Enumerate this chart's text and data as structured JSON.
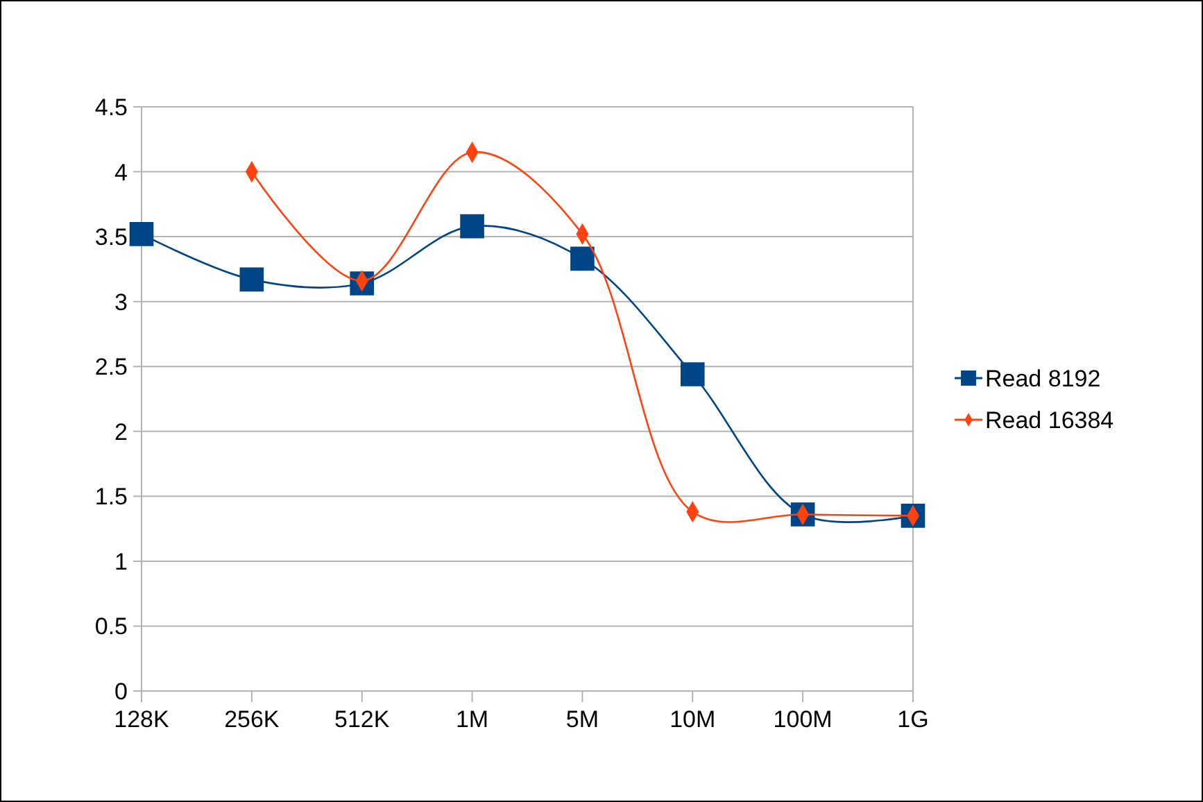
{
  "chart_data": {
    "type": "line",
    "categories": [
      "128K",
      "256K",
      "512K",
      "1M",
      "5M",
      "10M",
      "100M",
      "1G"
    ],
    "series": [
      {
        "name": "Read 8192",
        "color": "#004586",
        "marker": "square",
        "values": [
          3.52,
          3.17,
          3.14,
          3.58,
          3.33,
          2.44,
          1.36,
          1.35
        ]
      },
      {
        "name": "Read 16384",
        "color": "#ff420e",
        "marker": "diamond",
        "values": [
          null,
          4.0,
          3.16,
          4.15,
          3.52,
          1.38,
          1.36,
          1.35
        ]
      }
    ],
    "ylim": [
      0,
      4.5
    ],
    "yticks": [
      0,
      0.5,
      1,
      1.5,
      2,
      2.5,
      3,
      3.5,
      4,
      4.5
    ],
    "grid": "y",
    "legend": "right"
  }
}
